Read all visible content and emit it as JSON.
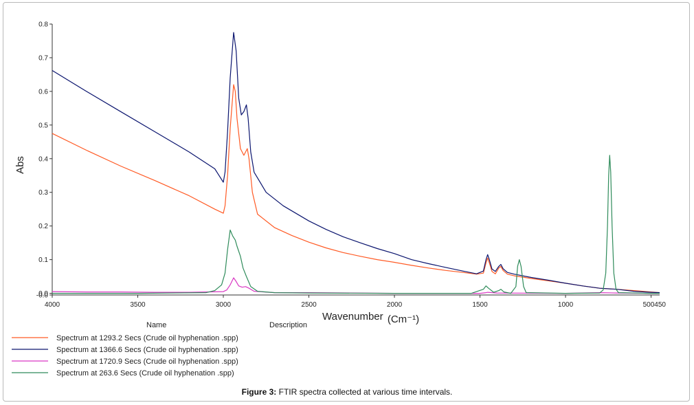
{
  "chart_data": {
    "type": "line",
    "ylabel": "Abs",
    "xlabel": "Wavenumber",
    "xlabel_unit": "(Cm⁻¹)",
    "xlim": [
      4000,
      450
    ],
    "ylim": [
      -0.005,
      0.8
    ],
    "x_ticks": [
      4000,
      3500,
      3000,
      2500,
      2000,
      1500,
      1000
    ],
    "x_tick_end_label": "500450",
    "y_ticks": [
      {
        "value": 0.8,
        "label": "0.8"
      },
      {
        "value": 0.7,
        "label": "0.7"
      },
      {
        "value": 0.6,
        "label": "0.6"
      },
      {
        "value": 0.5,
        "label": "0.5"
      },
      {
        "value": 0.4,
        "label": "0.4"
      },
      {
        "value": 0.3,
        "label": "0.3"
      },
      {
        "value": 0.2,
        "label": "0.2"
      },
      {
        "value": 0.1,
        "label": "0.1"
      },
      {
        "value": 0.0,
        "label": "0.0"
      },
      {
        "value": -0.005,
        "label": "-0.0"
      }
    ],
    "legend_headers": {
      "name": "Name",
      "description": "Description"
    },
    "series": [
      {
        "name": "Spectrum at 1293.2 Secs (Crude oil hyphenation .spp)",
        "color": "#ff5a24",
        "points": [
          [
            4000,
            0.475
          ],
          [
            3800,
            0.425
          ],
          [
            3600,
            0.378
          ],
          [
            3400,
            0.335
          ],
          [
            3200,
            0.29
          ],
          [
            3050,
            0.25
          ],
          [
            3000,
            0.238
          ],
          [
            2990,
            0.26
          ],
          [
            2975,
            0.35
          ],
          [
            2960,
            0.49
          ],
          [
            2940,
            0.62
          ],
          [
            2930,
            0.6
          ],
          [
            2920,
            0.52
          ],
          [
            2900,
            0.43
          ],
          [
            2880,
            0.41
          ],
          [
            2860,
            0.43
          ],
          [
            2850,
            0.4
          ],
          [
            2830,
            0.3
          ],
          [
            2800,
            0.235
          ],
          [
            2700,
            0.195
          ],
          [
            2600,
            0.172
          ],
          [
            2500,
            0.152
          ],
          [
            2400,
            0.135
          ],
          [
            2300,
            0.121
          ],
          [
            2200,
            0.11
          ],
          [
            2100,
            0.1
          ],
          [
            2000,
            0.092
          ],
          [
            1900,
            0.083
          ],
          [
            1800,
            0.075
          ],
          [
            1700,
            0.068
          ],
          [
            1600,
            0.062
          ],
          [
            1520,
            0.057
          ],
          [
            1480,
            0.06
          ],
          [
            1465,
            0.09
          ],
          [
            1455,
            0.105
          ],
          [
            1445,
            0.09
          ],
          [
            1430,
            0.065
          ],
          [
            1410,
            0.058
          ],
          [
            1390,
            0.075
          ],
          [
            1378,
            0.08
          ],
          [
            1365,
            0.068
          ],
          [
            1340,
            0.057
          ],
          [
            1300,
            0.052
          ],
          [
            1200,
            0.044
          ],
          [
            1100,
            0.037
          ],
          [
            1000,
            0.03
          ],
          [
            900,
            0.022
          ],
          [
            800,
            0.015
          ],
          [
            700,
            0.012
          ],
          [
            600,
            0.008
          ],
          [
            500,
            0.004
          ],
          [
            450,
            0.002
          ]
        ]
      },
      {
        "name": "Spectrum at 1366.6 Secs (Crude oil hyphenation .spp)",
        "color": "#0a146e",
        "points": [
          [
            4000,
            0.662
          ],
          [
            3800,
            0.6
          ],
          [
            3600,
            0.54
          ],
          [
            3400,
            0.48
          ],
          [
            3200,
            0.42
          ],
          [
            3050,
            0.37
          ],
          [
            3000,
            0.33
          ],
          [
            2990,
            0.36
          ],
          [
            2975,
            0.48
          ],
          [
            2960,
            0.64
          ],
          [
            2940,
            0.775
          ],
          [
            2925,
            0.72
          ],
          [
            2910,
            0.58
          ],
          [
            2895,
            0.53
          ],
          [
            2880,
            0.54
          ],
          [
            2865,
            0.56
          ],
          [
            2855,
            0.52
          ],
          [
            2840,
            0.42
          ],
          [
            2820,
            0.36
          ],
          [
            2750,
            0.3
          ],
          [
            2650,
            0.26
          ],
          [
            2500,
            0.215
          ],
          [
            2400,
            0.19
          ],
          [
            2300,
            0.168
          ],
          [
            2200,
            0.15
          ],
          [
            2100,
            0.133
          ],
          [
            2000,
            0.118
          ],
          [
            1900,
            0.1
          ],
          [
            1800,
            0.088
          ],
          [
            1700,
            0.077
          ],
          [
            1600,
            0.066
          ],
          [
            1520,
            0.058
          ],
          [
            1480,
            0.066
          ],
          [
            1465,
            0.1
          ],
          [
            1455,
            0.115
          ],
          [
            1445,
            0.1
          ],
          [
            1430,
            0.072
          ],
          [
            1410,
            0.065
          ],
          [
            1390,
            0.08
          ],
          [
            1378,
            0.086
          ],
          [
            1365,
            0.073
          ],
          [
            1340,
            0.062
          ],
          [
            1300,
            0.057
          ],
          [
            1200,
            0.047
          ],
          [
            1100,
            0.039
          ],
          [
            1000,
            0.03
          ],
          [
            900,
            0.022
          ],
          [
            800,
            0.015
          ],
          [
            700,
            0.012
          ],
          [
            600,
            0.006
          ],
          [
            500,
            0.003
          ],
          [
            450,
            0.002
          ]
        ]
      },
      {
        "name": "Spectrum at 1720.9 Secs (Crude oil hyphenation .spp)",
        "color": "#d936c3",
        "points": [
          [
            4000,
            0.005
          ],
          [
            3800,
            0.004
          ],
          [
            3600,
            0.004
          ],
          [
            3400,
            0.003
          ],
          [
            3200,
            0.003
          ],
          [
            3000,
            0.005
          ],
          [
            2980,
            0.01
          ],
          [
            2960,
            0.025
          ],
          [
            2940,
            0.046
          ],
          [
            2925,
            0.035
          ],
          [
            2910,
            0.022
          ],
          [
            2890,
            0.018
          ],
          [
            2870,
            0.02
          ],
          [
            2850,
            0.015
          ],
          [
            2820,
            0.006
          ],
          [
            2700,
            0.002
          ],
          [
            2500,
            0.002
          ],
          [
            2000,
            0.0
          ],
          [
            1500,
            0.0
          ],
          [
            1465,
            0.002
          ],
          [
            1455,
            0.003
          ],
          [
            1400,
            0.001
          ],
          [
            1000,
            0.0
          ],
          [
            800,
            0.002
          ],
          [
            700,
            0.001
          ],
          [
            450,
            0.0
          ]
        ]
      },
      {
        "name": "Spectrum at 263.6 Secs (Crude oil hyphenation .spp)",
        "color": "#2e8b5a",
        "points": [
          [
            4000,
            0.0
          ],
          [
            3500,
            0.0
          ],
          [
            3100,
            0.002
          ],
          [
            3050,
            0.008
          ],
          [
            3010,
            0.025
          ],
          [
            2990,
            0.06
          ],
          [
            2975,
            0.13
          ],
          [
            2960,
            0.188
          ],
          [
            2945,
            0.17
          ],
          [
            2930,
            0.158
          ],
          [
            2920,
            0.14
          ],
          [
            2900,
            0.11
          ],
          [
            2885,
            0.075
          ],
          [
            2865,
            0.05
          ],
          [
            2840,
            0.02
          ],
          [
            2800,
            0.006
          ],
          [
            2700,
            0.002
          ],
          [
            2500,
            0.001
          ],
          [
            2000,
            0.0
          ],
          [
            1550,
            0.0
          ],
          [
            1480,
            0.012
          ],
          [
            1465,
            0.022
          ],
          [
            1450,
            0.015
          ],
          [
            1420,
            0.003
          ],
          [
            1390,
            0.008
          ],
          [
            1378,
            0.012
          ],
          [
            1360,
            0.004
          ],
          [
            1320,
            0.0
          ],
          [
            1290,
            0.02
          ],
          [
            1280,
            0.08
          ],
          [
            1270,
            0.1
          ],
          [
            1260,
            0.08
          ],
          [
            1245,
            0.02
          ],
          [
            1230,
            0.002
          ],
          [
            1000,
            0.0
          ],
          [
            800,
            0.001
          ],
          [
            780,
            0.01
          ],
          [
            765,
            0.06
          ],
          [
            755,
            0.2
          ],
          [
            748,
            0.35
          ],
          [
            742,
            0.41
          ],
          [
            736,
            0.36
          ],
          [
            728,
            0.2
          ],
          [
            718,
            0.06
          ],
          [
            705,
            0.012
          ],
          [
            690,
            0.002
          ],
          [
            500,
            0.0
          ],
          [
            450,
            0.0
          ]
        ]
      }
    ]
  },
  "caption": {
    "label": "Figure 3:",
    "text": " FTIR spectra collected at various time intervals."
  }
}
